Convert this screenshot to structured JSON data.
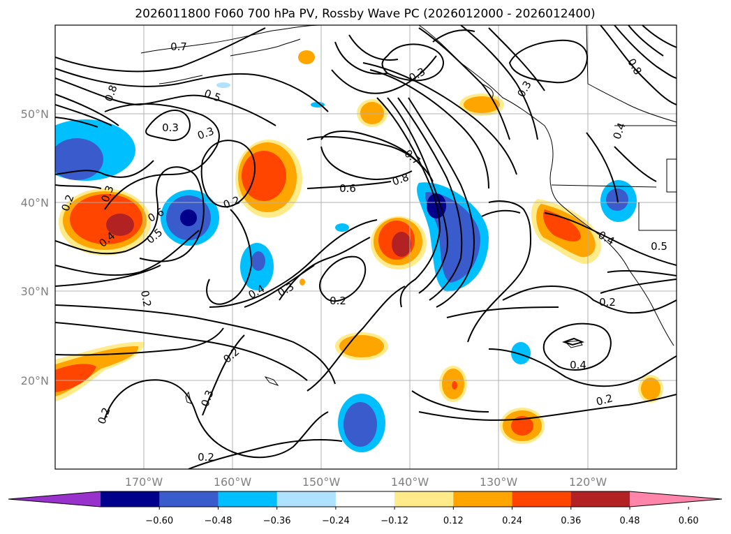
{
  "title": "2026011800 F060 700 hPa PV, Rossby Wave PC (2026012000 - 2026012400)",
  "map": {
    "lat_labels": [
      "50°N",
      "40°N",
      "30°N",
      "20°N"
    ],
    "lon_labels": [
      "170°W",
      "160°W",
      "150°W",
      "140°W",
      "130°W",
      "120°W"
    ],
    "contour_labels": [
      "0.7",
      "0.5",
      "0.3",
      "0.3",
      "0.8",
      "0.3",
      "0.2",
      "0.4",
      "0.6",
      "0.5",
      "0.2",
      "0.4",
      "0.3",
      "0.2",
      "0.2",
      "0.6",
      "0.7",
      "0.8",
      "0.2",
      "0.4",
      "0.5",
      "0.2",
      "0.4",
      "0.2",
      "0.2",
      "0.3",
      "0.2",
      "0.3",
      "0.3",
      "0.8",
      "0.4"
    ]
  },
  "colorbar": {
    "ticks": [
      "−0.60",
      "−0.48",
      "−0.36",
      "−0.24",
      "−0.12",
      "0.12",
      "0.24",
      "0.36",
      "0.48",
      "0.60"
    ],
    "colors": [
      "#9932cc",
      "#00008b",
      "#3a5bcb",
      "#00bfff",
      "#b0e2ff",
      "#ffffff",
      "#ffeb8a",
      "#ffa500",
      "#ff4500",
      "#b22222",
      "#ff85ab"
    ]
  },
  "colors": {
    "neg_strong": "#00008b",
    "neg_mid": "#3a5bcb",
    "neg_weak": "#00bfff",
    "neg_faint": "#b0e2ff",
    "pos_faint": "#ffeb8a",
    "pos_weak": "#ffa500",
    "pos_mid": "#ff4500",
    "pos_strong": "#b22222"
  }
}
